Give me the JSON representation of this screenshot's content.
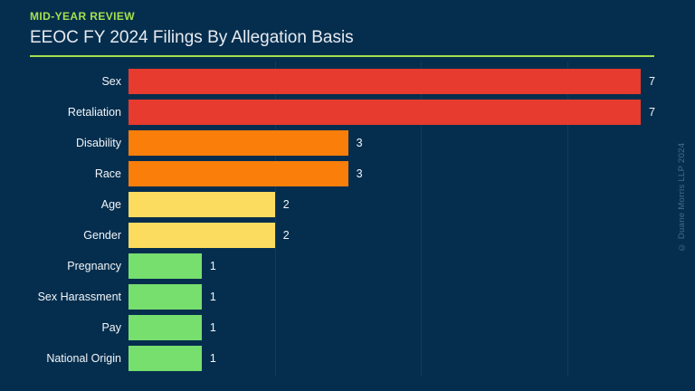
{
  "header": {
    "eyebrow": "MID-YEAR REVIEW",
    "title": "EEOC FY 2024 Filings By Allegation Basis"
  },
  "chart_data": {
    "type": "bar",
    "orientation": "horizontal",
    "title": "EEOC FY 2024 Filings By Allegation Basis",
    "subtitle": "MID-YEAR REVIEW",
    "categories": [
      "Sex",
      "Retaliation",
      "Disability",
      "Race",
      "Age",
      "Gender",
      "Pregnancy",
      "Sex Harassment",
      "Pay",
      "National Origin"
    ],
    "values": [
      7,
      7,
      3,
      3,
      2,
      2,
      1,
      1,
      1,
      1
    ],
    "value_labels": [
      "7",
      "7",
      "3",
      "3",
      "2",
      "2",
      "1",
      "1",
      "1",
      "1"
    ],
    "bar_colors": [
      "#e63b2e",
      "#e63b2e",
      "#fa7e0a",
      "#fa7e0a",
      "#fcdc5f",
      "#fcdc5f",
      "#76df6e",
      "#76df6e",
      "#76df6e",
      "#76df6e"
    ],
    "xlabel": "",
    "ylabel": "",
    "xlim": [
      0,
      7
    ],
    "gridlines_x": [
      2,
      4,
      6
    ],
    "grid": true,
    "legend": false,
    "data_labels": true
  },
  "colors": {
    "background": "#052e4e",
    "accent": "#a5e04c",
    "red": "#e63b2e",
    "orange": "#fa7e0a",
    "yellow": "#fcdc5f",
    "green": "#76df6e",
    "title_text": "#e7ebf0",
    "label_text": "#f2f5f8",
    "gridline": "#13395c",
    "copyright_text": "#3f6d92"
  },
  "footer": {
    "copyright": "© Duane Morris LLP 2024"
  }
}
